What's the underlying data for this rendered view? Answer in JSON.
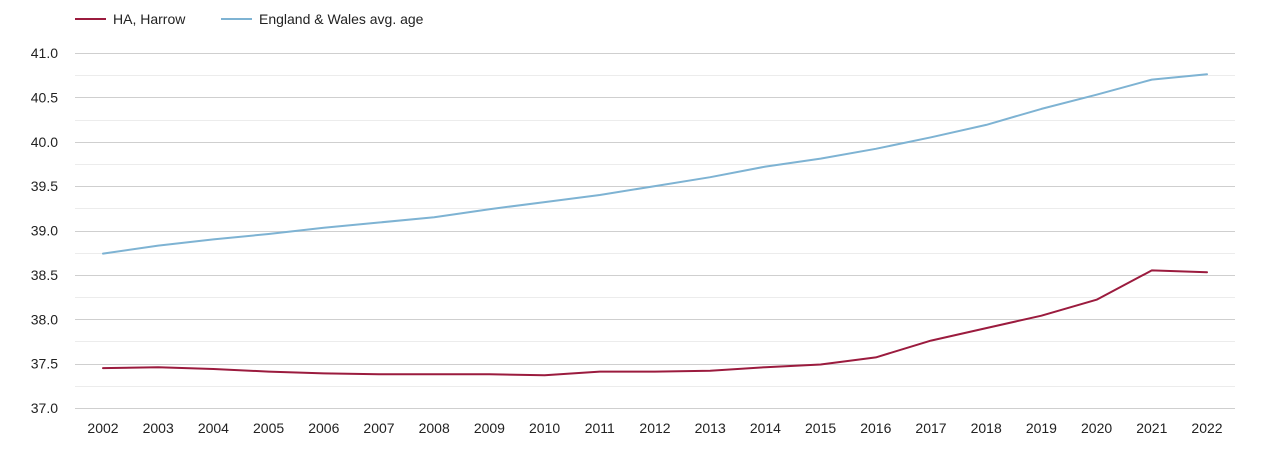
{
  "chart_data": {
    "type": "line",
    "x": [
      "2002",
      "2003",
      "2004",
      "2005",
      "2006",
      "2007",
      "2008",
      "2009",
      "2010",
      "2011",
      "2012",
      "2013",
      "2014",
      "2015",
      "2016",
      "2017",
      "2018",
      "2019",
      "2020",
      "2021",
      "2022"
    ],
    "series": [
      {
        "name": "HA, Harrow",
        "color": "#9b1b3e",
        "values": [
          37.45,
          37.46,
          37.44,
          37.41,
          37.39,
          37.38,
          37.38,
          37.38,
          37.37,
          37.41,
          37.41,
          37.42,
          37.46,
          37.49,
          37.57,
          37.76,
          37.9,
          38.04,
          38.22,
          38.55,
          38.53
        ]
      },
      {
        "name": "England & Wales avg. age",
        "color": "#7eb3d3",
        "values": [
          38.74,
          38.83,
          38.9,
          38.96,
          39.03,
          39.09,
          39.15,
          39.24,
          39.32,
          39.4,
          39.5,
          39.6,
          39.72,
          39.81,
          39.92,
          40.05,
          40.19,
          40.37,
          40.53,
          40.7,
          40.76
        ]
      }
    ],
    "yticks": [
      "37.0",
      "37.5",
      "38.0",
      "38.5",
      "39.0",
      "39.5",
      "40.0",
      "40.5",
      "41.0"
    ],
    "ylim": [
      37.0,
      41.0
    ],
    "grid": true,
    "legend_position": "top-left"
  }
}
